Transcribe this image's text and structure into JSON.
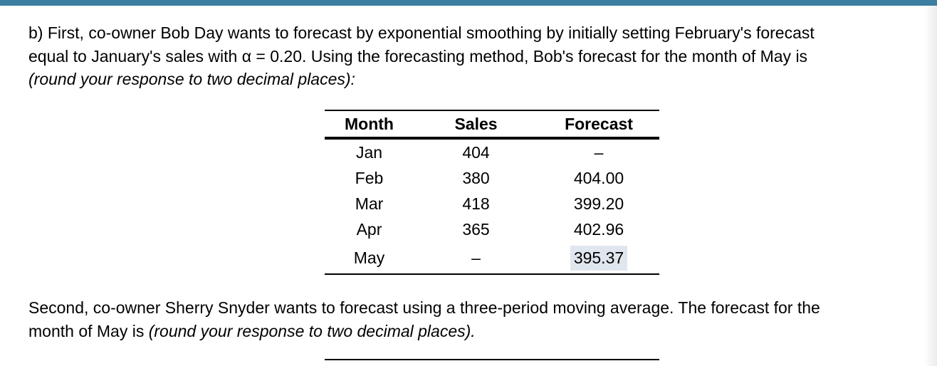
{
  "question_b": {
    "line1": "b) First, co-owner Bob Day wants to forecast by exponential smoothing by initially setting February's forecast",
    "line2": "equal to January's sales with α = 0.20.  Using the forecasting method, Bob's forecast for the month of May is",
    "line3_italic": "(round your response to two decimal places):"
  },
  "table": {
    "headers": [
      "Month",
      "Sales",
      "Forecast"
    ],
    "rows": [
      {
        "month": "Jan",
        "sales": "404",
        "forecast": "–"
      },
      {
        "month": "Feb",
        "sales": "380",
        "forecast": "404.00"
      },
      {
        "month": "Mar",
        "sales": "418",
        "forecast": "399.20"
      },
      {
        "month": "Apr",
        "sales": "365",
        "forecast": "402.96"
      },
      {
        "month": "May",
        "sales": "–",
        "forecast": "395.37"
      }
    ]
  },
  "question_second": {
    "line1": "Second, co-owner Sherry Snyder wants to forecast using a three-period moving average.  The forecast for the",
    "line2_plain": "month of May is ",
    "line2_italic": "(round your response to two decimal places)."
  },
  "colors": {
    "top_bar": "#3b7ea1",
    "answer_highlight": "#dfe6ee"
  }
}
